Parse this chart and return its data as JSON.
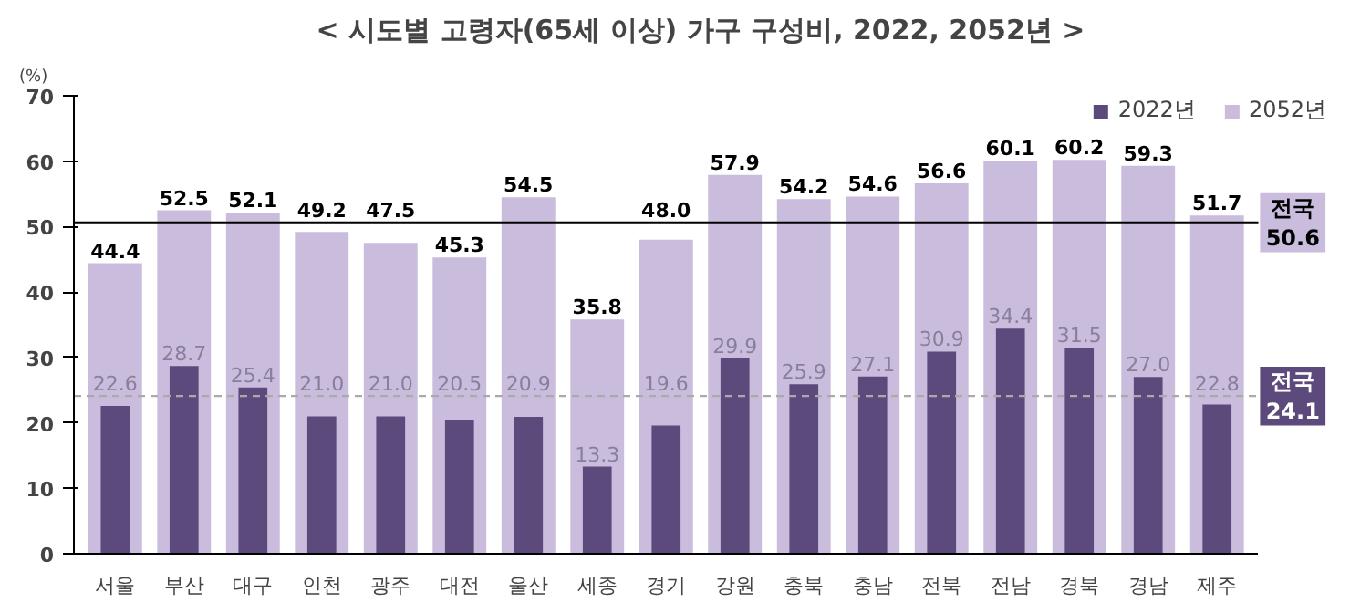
{
  "chart_data": {
    "type": "bar",
    "title": "< 시도별 고령자(65세 이상) 가구 구성비, 2022, 2052년 >",
    "ylabel": "(%)",
    "categories": [
      "서울",
      "부산",
      "대구",
      "인천",
      "광주",
      "대전",
      "울산",
      "세종",
      "경기",
      "강원",
      "충북",
      "충남",
      "전북",
      "전남",
      "경북",
      "경남",
      "제주"
    ],
    "series": [
      {
        "name": "2052년",
        "color": "#c9bcdc",
        "values": [
          44.4,
          52.5,
          52.1,
          49.2,
          47.5,
          45.3,
          54.5,
          35.8,
          48.0,
          57.9,
          54.2,
          54.6,
          56.6,
          60.1,
          60.2,
          59.3,
          51.7
        ],
        "value_labels": [
          "44.4",
          "52.5",
          "52.1",
          "49.2",
          "47.5",
          "45.3",
          "54.5",
          "35.8",
          "48.0",
          "57.9",
          "54.2",
          "54.6",
          "56.6",
          "60.1",
          "60.2",
          "59.3",
          "51.7"
        ]
      },
      {
        "name": "2022년",
        "color": "#5c4a7d",
        "values": [
          22.6,
          28.7,
          25.4,
          21.0,
          21.0,
          20.5,
          20.9,
          13.3,
          19.6,
          29.9,
          25.9,
          27.1,
          30.9,
          34.4,
          31.5,
          27.0,
          22.8
        ],
        "value_labels": [
          "22.6",
          "28.7",
          "25.4",
          "21.0",
          "21.0",
          "20.5",
          "20.9",
          "13.3",
          "19.6",
          "29.9",
          "25.9",
          "27.1",
          "30.9",
          "34.4",
          "31.5",
          "27.0",
          "22.8"
        ]
      }
    ],
    "ylim": [
      0,
      70
    ],
    "yticks": [
      0,
      10,
      20,
      30,
      40,
      50,
      60,
      70
    ],
    "ref_lines": [
      {
        "axis": "y",
        "value": 50.6,
        "label": "전국 50.6",
        "color": "#000000",
        "line_style": "solid"
      },
      {
        "axis": "y",
        "value": 24.1,
        "label": "전국 24.1",
        "color": "#aaaaaa",
        "line_style": "dashed"
      }
    ],
    "grid": false,
    "legend": "top right"
  }
}
